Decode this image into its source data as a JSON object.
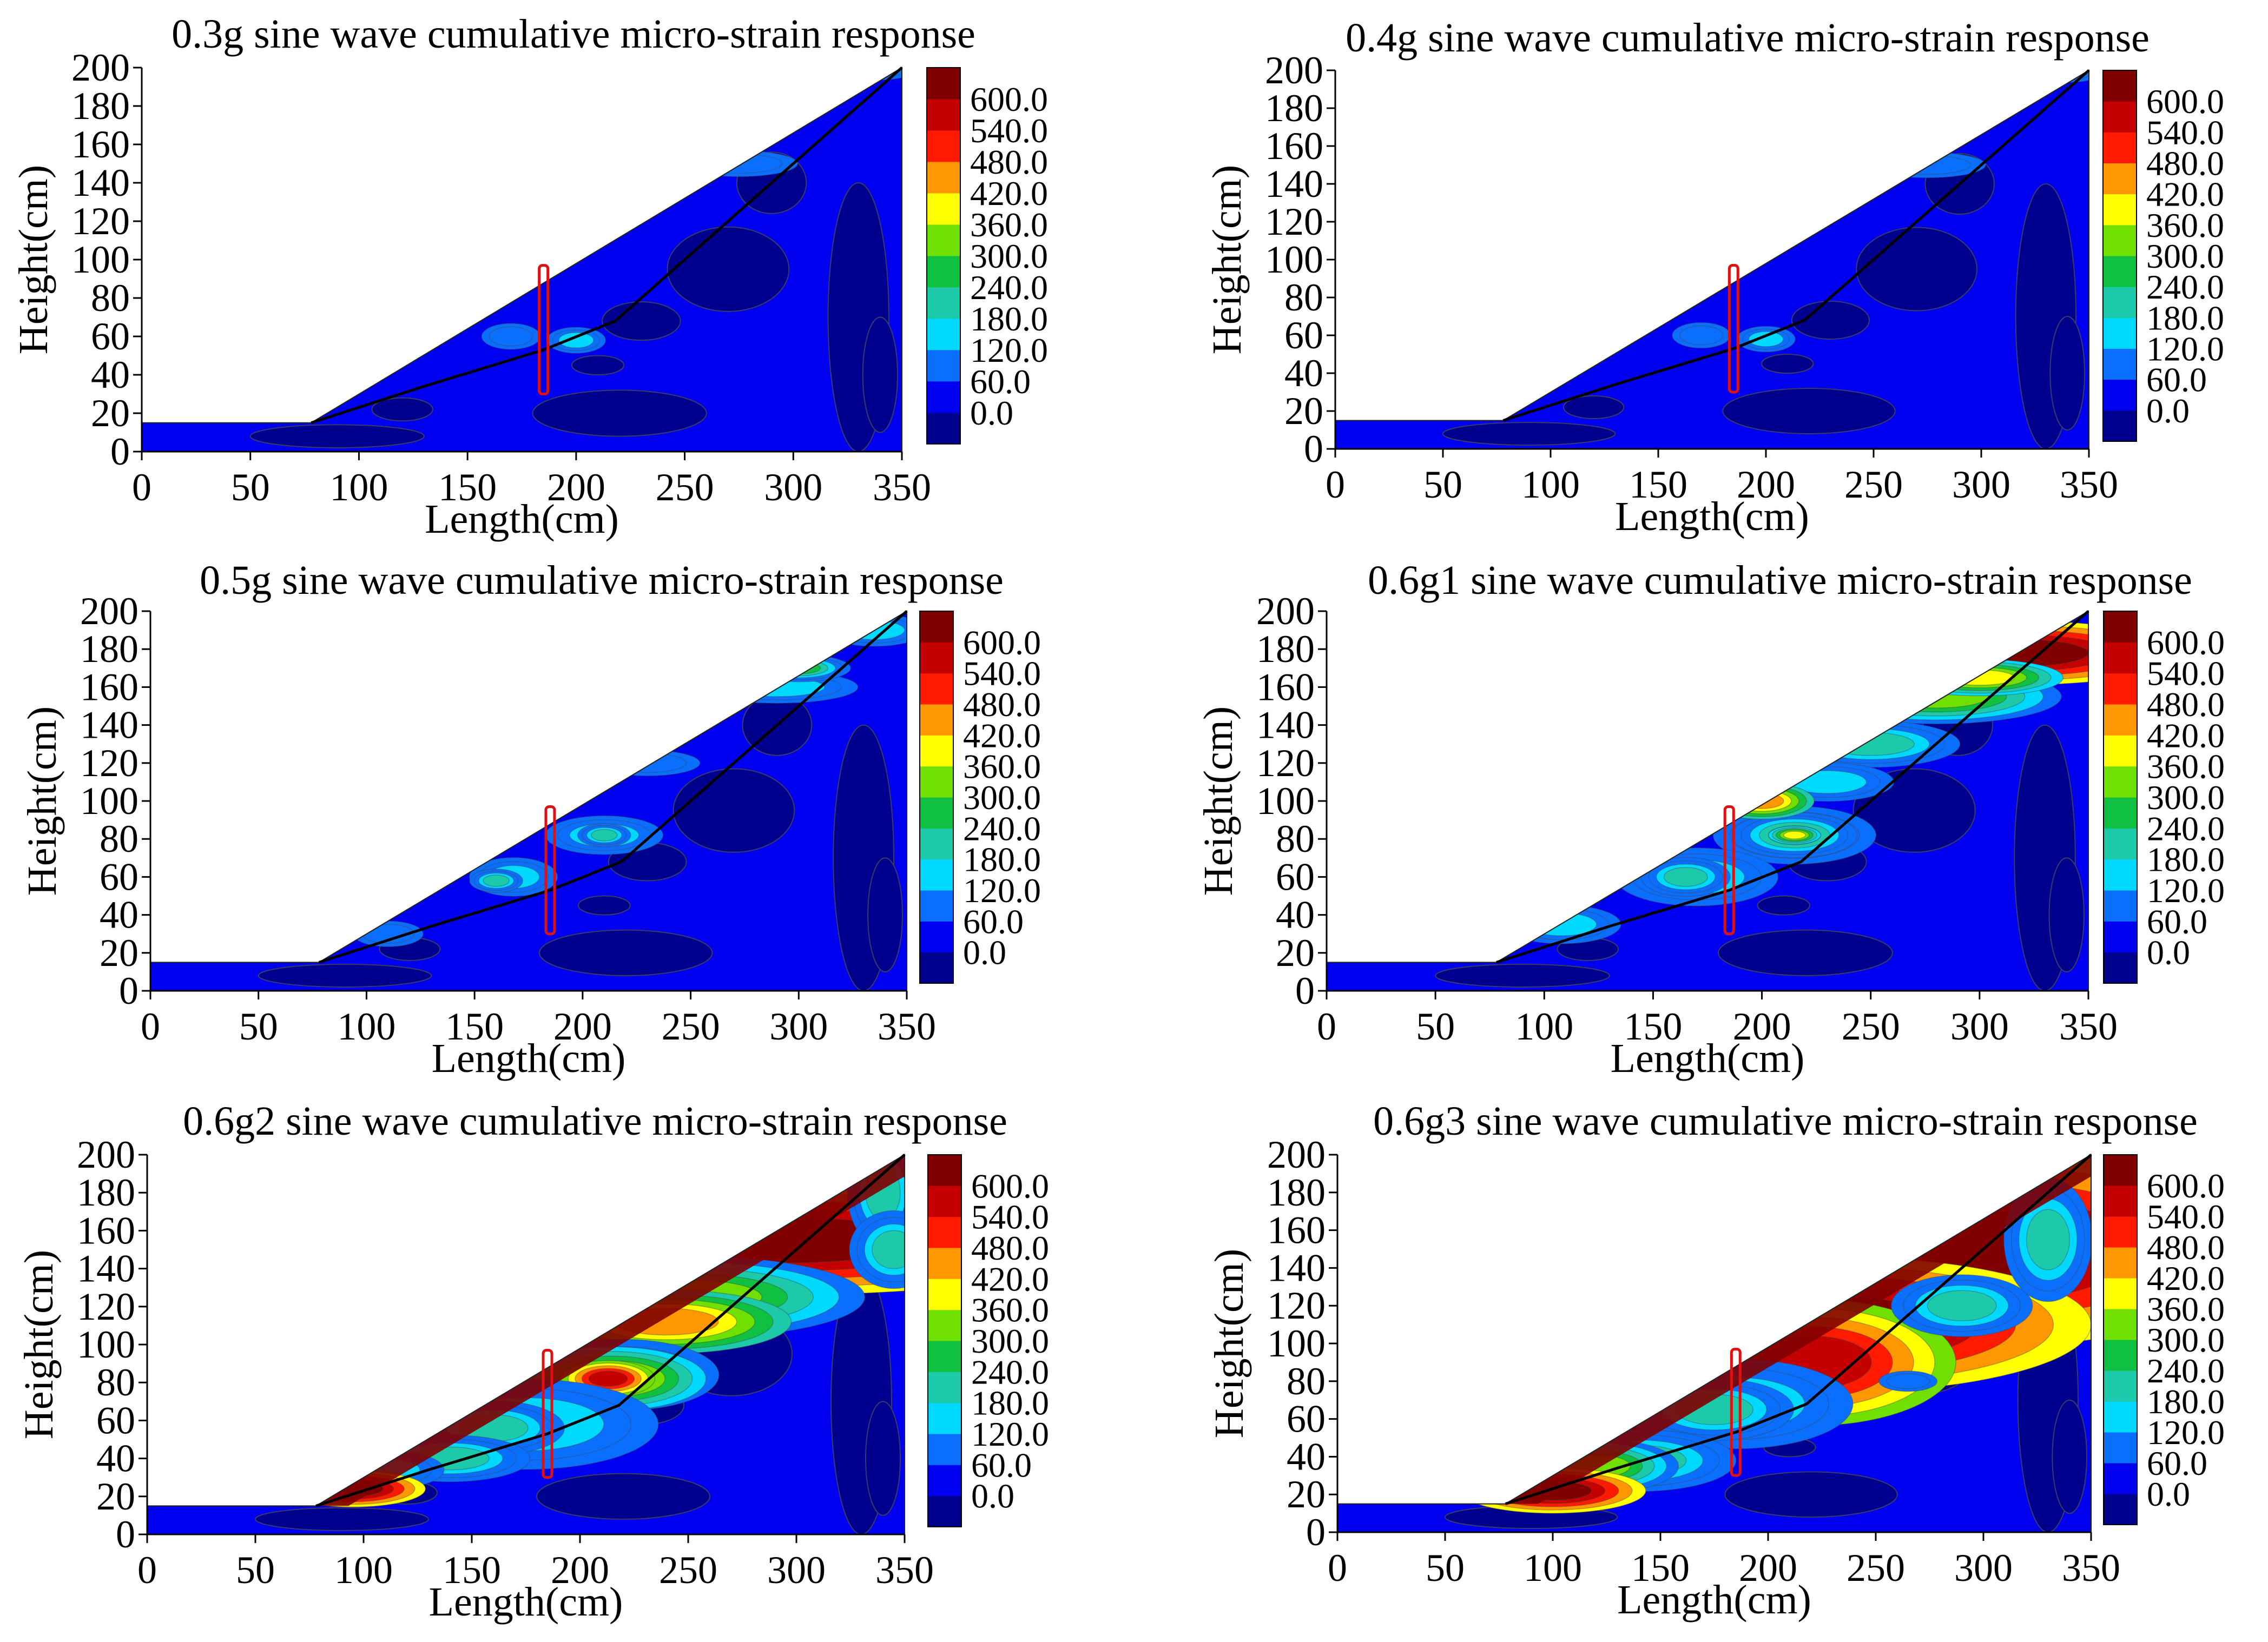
{
  "figure": {
    "panel_count": 6
  },
  "colorbar": {
    "levels": [
      "0.0",
      "60.0",
      "120.0",
      "180.0",
      "240.0",
      "300.0",
      "360.0",
      "420.0",
      "480.0",
      "540.0",
      "600.0"
    ],
    "colors": [
      "#00008f",
      "#0000f0",
      "#0a6eff",
      "#00d9ff",
      "#1cc9a8",
      "#10c040",
      "#6fe000",
      "#ffff00",
      "#ff9800",
      "#ff1a00",
      "#c40000",
      "#800000"
    ]
  },
  "chart_data": [
    {
      "type": "contour",
      "title": "0.3g sine wave cumulative micro-strain response",
      "xlabel": "Length(cm)",
      "ylabel": "Height(cm)",
      "xlim": [
        0,
        350
      ],
      "ylim": [
        0,
        200
      ],
      "xticks": [
        "0",
        "50",
        "100",
        "150",
        "200",
        "250",
        "300",
        "350"
      ],
      "yticks": [
        "0",
        "20",
        "40",
        "60",
        "80",
        "100",
        "120",
        "140",
        "160",
        "180",
        "200"
      ],
      "slope_profile": [
        [
          0,
          15
        ],
        [
          78,
          15
        ],
        [
          350,
          200
        ],
        [
          350,
          0
        ],
        [
          0,
          0
        ]
      ],
      "slip_line": [
        [
          78,
          15
        ],
        [
          130,
          34
        ],
        [
          185,
          53
        ],
        [
          218,
          68
        ],
        [
          260,
          110
        ],
        [
          310,
          160
        ],
        [
          350,
          200
        ]
      ],
      "marker_box": {
        "x": [
          183,
          187
        ],
        "y": [
          30,
          97
        ]
      },
      "intensity": "low"
    },
    {
      "type": "contour",
      "title": "0.4g sine wave cumulative micro-strain response",
      "xlabel": "Length(cm)",
      "ylabel": "Height(cm)",
      "xlim": [
        0,
        350
      ],
      "ylim": [
        0,
        200
      ],
      "xticks": [
        "0",
        "50",
        "100",
        "150",
        "200",
        "250",
        "300",
        "350"
      ],
      "yticks": [
        "0",
        "20",
        "40",
        "60",
        "80",
        "100",
        "120",
        "140",
        "160",
        "180",
        "200"
      ],
      "slope_profile": [
        [
          0,
          15
        ],
        [
          78,
          15
        ],
        [
          350,
          200
        ],
        [
          350,
          0
        ],
        [
          0,
          0
        ]
      ],
      "slip_line": [
        [
          78,
          15
        ],
        [
          130,
          34
        ],
        [
          185,
          53
        ],
        [
          218,
          68
        ],
        [
          260,
          110
        ],
        [
          310,
          160
        ],
        [
          350,
          200
        ]
      ],
      "marker_box": {
        "x": [
          183,
          187
        ],
        "y": [
          30,
          97
        ]
      },
      "intensity": "low"
    },
    {
      "type": "contour",
      "title": "0.5g sine wave cumulative micro-strain response",
      "xlabel": "Length(cm)",
      "ylabel": "Height(cm)",
      "xlim": [
        0,
        350
      ],
      "ylim": [
        0,
        200
      ],
      "xticks": [
        "0",
        "50",
        "100",
        "150",
        "200",
        "250",
        "300",
        "350"
      ],
      "yticks": [
        "0",
        "20",
        "40",
        "60",
        "80",
        "100",
        "120",
        "140",
        "160",
        "180",
        "200"
      ],
      "slope_profile": [
        [
          0,
          15
        ],
        [
          78,
          15
        ],
        [
          350,
          200
        ],
        [
          350,
          0
        ],
        [
          0,
          0
        ]
      ],
      "slip_line": [
        [
          78,
          15
        ],
        [
          130,
          34
        ],
        [
          185,
          53
        ],
        [
          218,
          68
        ],
        [
          260,
          110
        ],
        [
          310,
          160
        ],
        [
          350,
          200
        ]
      ],
      "marker_box": {
        "x": [
          183,
          187
        ],
        "y": [
          30,
          97
        ]
      },
      "intensity": "moderate"
    },
    {
      "type": "contour",
      "title": "0.6g1 sine wave cumulative micro-strain response",
      "xlabel": "Length(cm)",
      "ylabel": "Height(cm)",
      "xlim": [
        0,
        350
      ],
      "ylim": [
        0,
        200
      ],
      "xticks": [
        "0",
        "50",
        "100",
        "150",
        "200",
        "250",
        "300",
        "350"
      ],
      "yticks": [
        "0",
        "20",
        "40",
        "60",
        "80",
        "100",
        "120",
        "140",
        "160",
        "180",
        "200"
      ],
      "slope_profile": [
        [
          0,
          15
        ],
        [
          78,
          15
        ],
        [
          350,
          200
        ],
        [
          350,
          0
        ],
        [
          0,
          0
        ]
      ],
      "slip_line": [
        [
          78,
          15
        ],
        [
          130,
          34
        ],
        [
          185,
          53
        ],
        [
          218,
          68
        ],
        [
          260,
          110
        ],
        [
          310,
          160
        ],
        [
          350,
          200
        ]
      ],
      "marker_box": {
        "x": [
          183,
          187
        ],
        "y": [
          30,
          97
        ]
      },
      "intensity": "elevated"
    },
    {
      "type": "contour",
      "title": "0.6g2 sine wave cumulative micro-strain response",
      "xlabel": "Length(cm)",
      "ylabel": "Height(cm)",
      "xlim": [
        0,
        350
      ],
      "ylim": [
        0,
        200
      ],
      "xticks": [
        "0",
        "50",
        "100",
        "150",
        "200",
        "250",
        "300",
        "350"
      ],
      "yticks": [
        "0",
        "20",
        "40",
        "60",
        "80",
        "100",
        "120",
        "140",
        "160",
        "180",
        "200"
      ],
      "slope_profile": [
        [
          0,
          15
        ],
        [
          78,
          15
        ],
        [
          350,
          200
        ],
        [
          350,
          0
        ],
        [
          0,
          0
        ]
      ],
      "slip_line": [
        [
          78,
          15
        ],
        [
          130,
          34
        ],
        [
          185,
          53
        ],
        [
          218,
          68
        ],
        [
          260,
          110
        ],
        [
          310,
          160
        ],
        [
          350,
          200
        ]
      ],
      "marker_box": {
        "x": [
          183,
          187
        ],
        "y": [
          30,
          97
        ]
      },
      "intensity": "high"
    },
    {
      "type": "contour",
      "title": "0.6g3 sine wave cumulative micro-strain response",
      "xlabel": "Length(cm)",
      "ylabel": "Height(cm)",
      "xlim": [
        0,
        350
      ],
      "ylim": [
        0,
        200
      ],
      "xticks": [
        "0",
        "50",
        "100",
        "150",
        "200",
        "250",
        "300",
        "350"
      ],
      "yticks": [
        "0",
        "20",
        "40",
        "60",
        "80",
        "100",
        "120",
        "140",
        "160",
        "180",
        "200"
      ],
      "slope_profile": [
        [
          0,
          15
        ],
        [
          78,
          15
        ],
        [
          350,
          200
        ],
        [
          350,
          0
        ],
        [
          0,
          0
        ]
      ],
      "slip_line": [
        [
          78,
          15
        ],
        [
          130,
          34
        ],
        [
          185,
          53
        ],
        [
          218,
          68
        ],
        [
          260,
          110
        ],
        [
          310,
          160
        ],
        [
          350,
          200
        ]
      ],
      "marker_box": {
        "x": [
          183,
          187
        ],
        "y": [
          30,
          97
        ]
      },
      "intensity": "very-high"
    }
  ]
}
